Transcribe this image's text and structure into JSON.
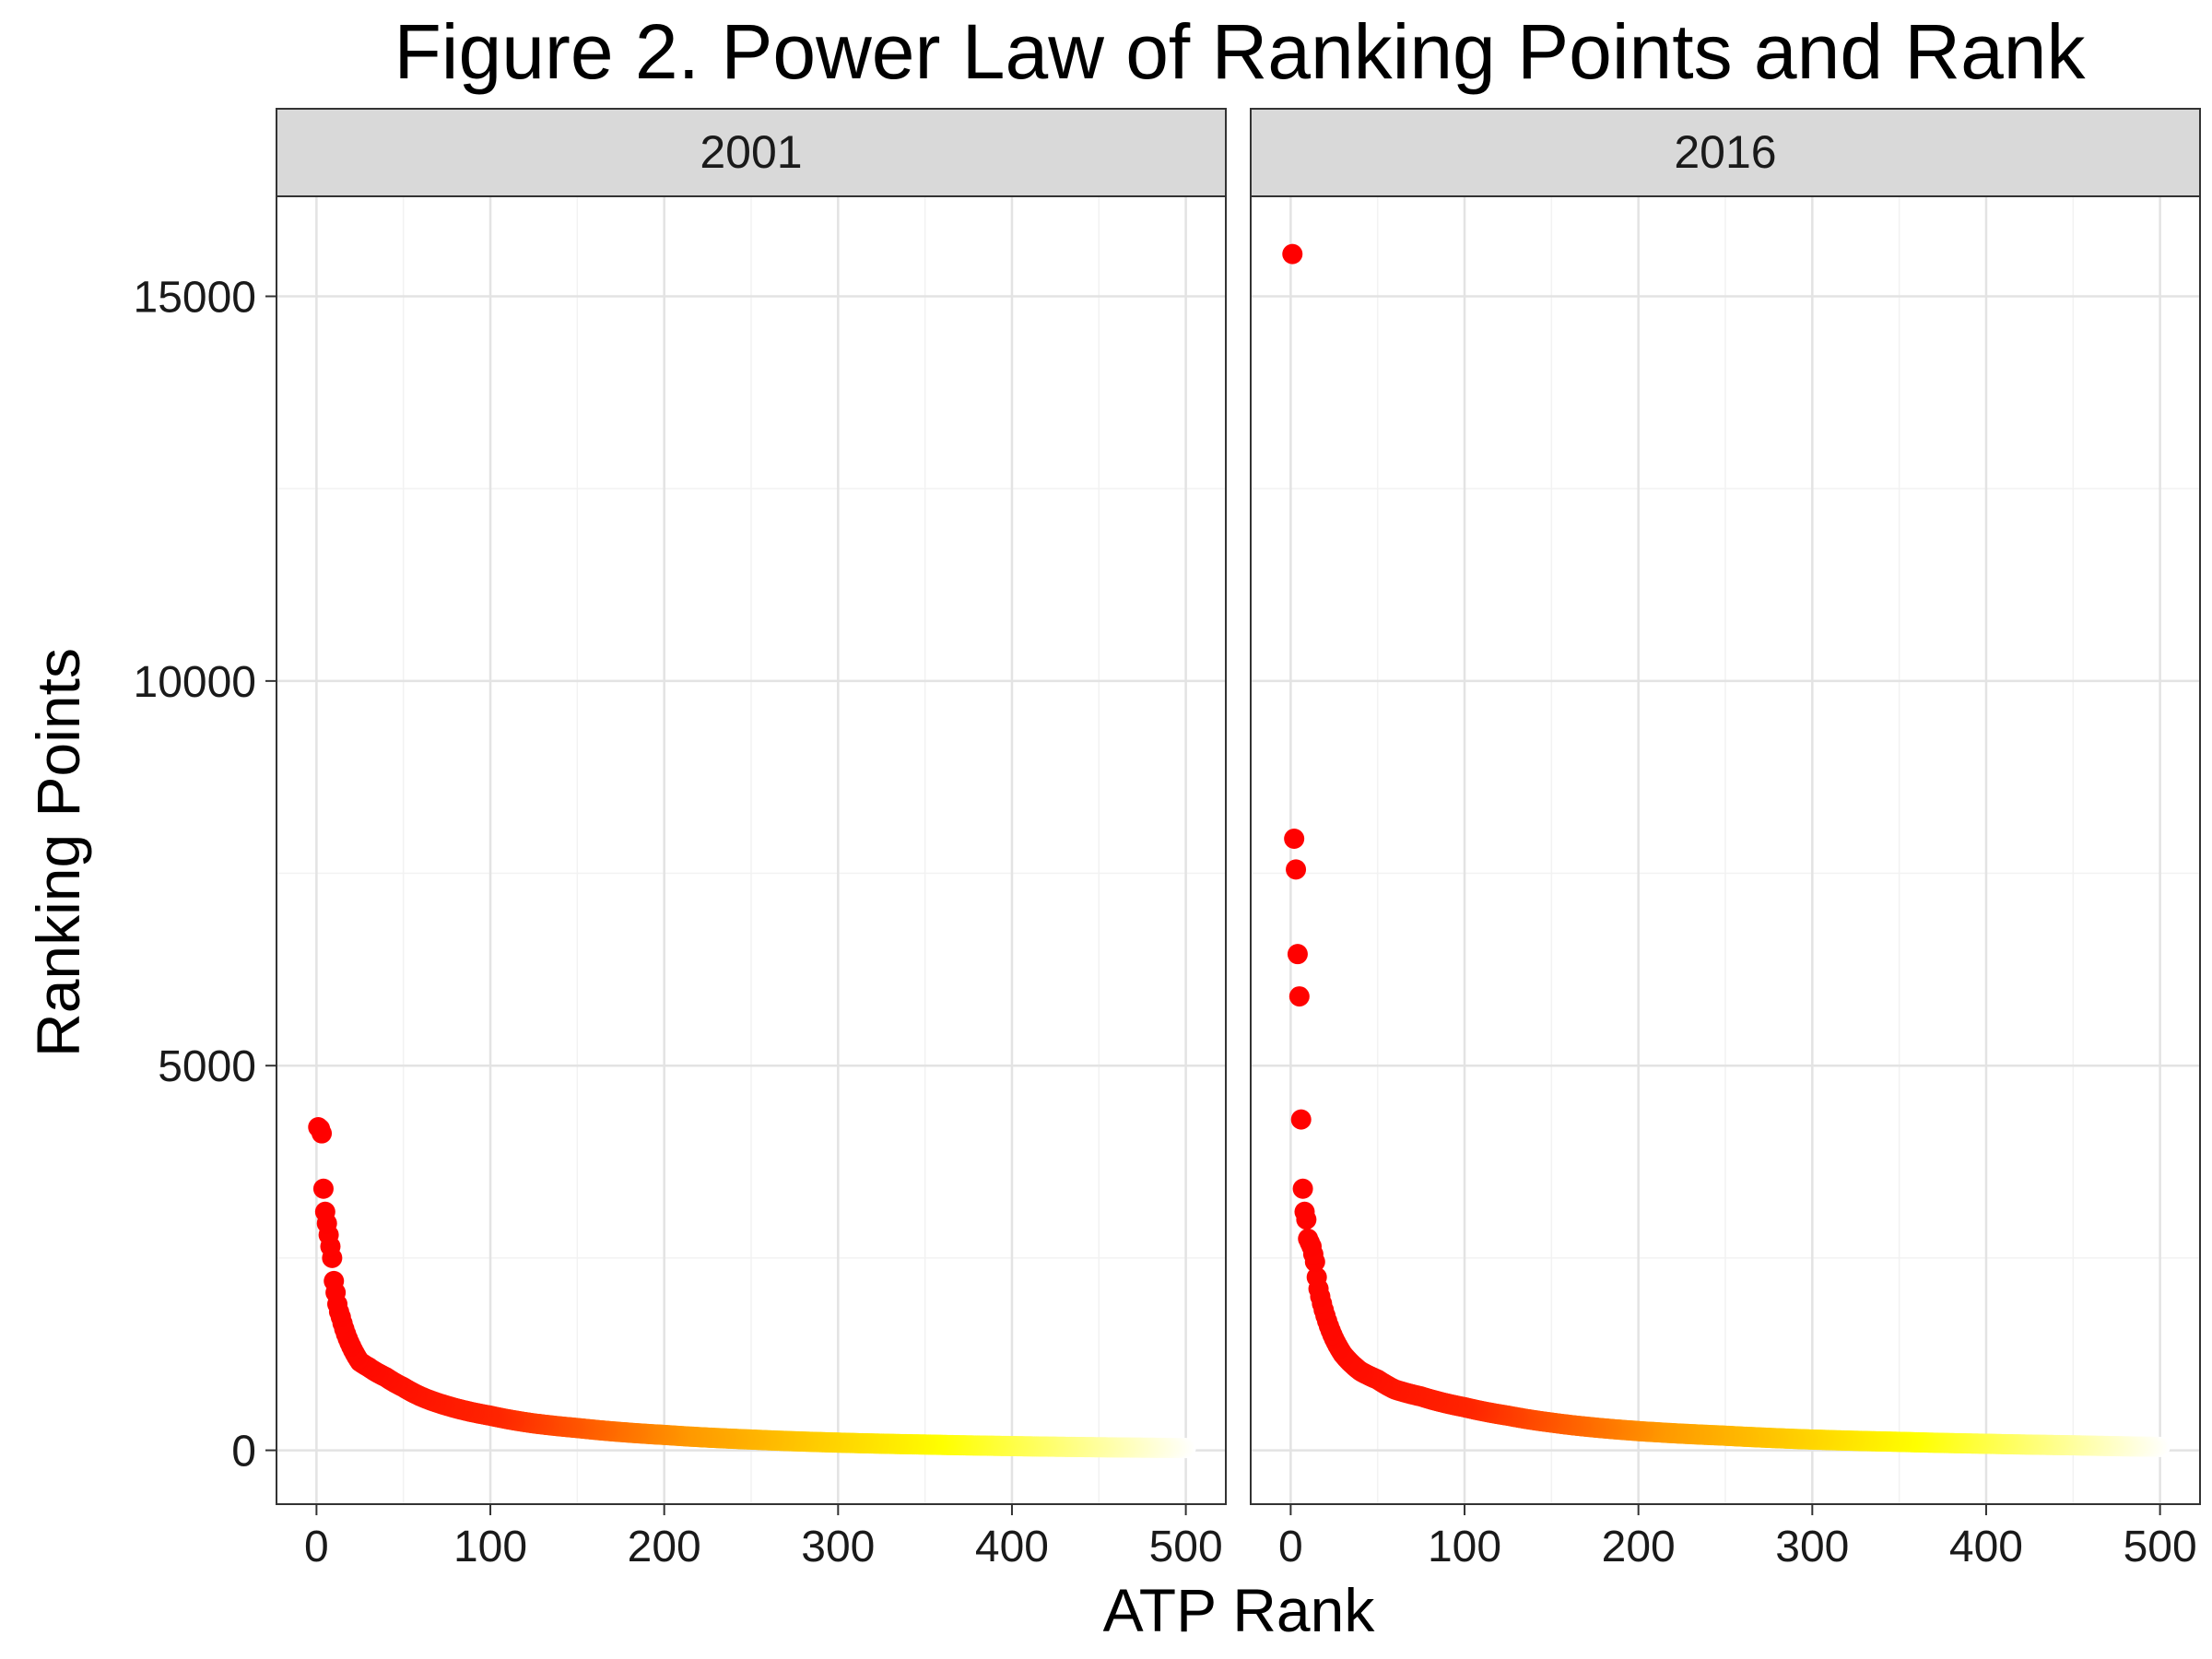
{
  "chart_data": {
    "type": "scatter",
    "title": "Figure 2. Power Law of Ranking Points and Rank",
    "xlabel": "ATP Rank",
    "ylabel": "Ranking Points",
    "xlim": [
      -23,
      523
    ],
    "ylim": [
      -700,
      16300
    ],
    "x_ticks": [
      0,
      100,
      200,
      300,
      400,
      500
    ],
    "y_ticks": [
      0,
      5000,
      10000,
      15000
    ],
    "grid": true,
    "color_gradient": [
      "#ff0000",
      "#ff9900",
      "#ffff00",
      "#ffffff"
    ],
    "facets": [
      {
        "label": "2001",
        "top_points": [
          {
            "rank": 1,
            "points": 4200
          },
          {
            "rank": 2,
            "points": 4180
          },
          {
            "rank": 3,
            "points": 4120
          },
          {
            "rank": 4,
            "points": 3400
          },
          {
            "rank": 5,
            "points": 3100
          },
          {
            "rank": 6,
            "points": 2950
          },
          {
            "rank": 7,
            "points": 2800
          },
          {
            "rank": 8,
            "points": 2650
          },
          {
            "rank": 9,
            "points": 2500
          },
          {
            "rank": 10,
            "points": 2200
          },
          {
            "rank": 11,
            "points": 2050
          },
          {
            "rank": 12,
            "points": 1900
          },
          {
            "rank": 13,
            "points": 1800
          }
        ],
        "tail_points": [
          {
            "rank": 15,
            "points": 1650
          },
          {
            "rank": 20,
            "points": 1350
          },
          {
            "rank": 25,
            "points": 1150
          },
          {
            "rank": 30,
            "points": 1080
          },
          {
            "rank": 40,
            "points": 950
          },
          {
            "rank": 50,
            "points": 820
          },
          {
            "rank": 60,
            "points": 700
          },
          {
            "rank": 75,
            "points": 580
          },
          {
            "rank": 100,
            "points": 450
          },
          {
            "rank": 125,
            "points": 350
          },
          {
            "rank": 150,
            "points": 290
          },
          {
            "rank": 200,
            "points": 200
          },
          {
            "rank": 250,
            "points": 140
          },
          {
            "rank": 300,
            "points": 100
          },
          {
            "rank": 350,
            "points": 75
          },
          {
            "rank": 400,
            "points": 55
          },
          {
            "rank": 450,
            "points": 40
          },
          {
            "rank": 500,
            "points": 30
          }
        ]
      },
      {
        "label": "2016",
        "top_points": [
          {
            "rank": 1,
            "points": 15550
          },
          {
            "rank": 2,
            "points": 7950
          },
          {
            "rank": 3,
            "points": 7550
          },
          {
            "rank": 4,
            "points": 6450
          },
          {
            "rank": 5,
            "points": 5900
          },
          {
            "rank": 6,
            "points": 4300
          },
          {
            "rank": 7,
            "points": 3400
          },
          {
            "rank": 8,
            "points": 3100
          },
          {
            "rank": 9,
            "points": 3000
          },
          {
            "rank": 10,
            "points": 2750
          },
          {
            "rank": 11,
            "points": 2700
          },
          {
            "rank": 12,
            "points": 2650
          },
          {
            "rank": 13,
            "points": 2550
          },
          {
            "rank": 14,
            "points": 2450
          },
          {
            "rank": 15,
            "points": 2250
          }
        ],
        "tail_points": [
          {
            "rank": 16,
            "points": 2100
          },
          {
            "rank": 20,
            "points": 1750
          },
          {
            "rank": 25,
            "points": 1450
          },
          {
            "rank": 30,
            "points": 1250
          },
          {
            "rank": 40,
            "points": 1030
          },
          {
            "rank": 50,
            "points": 920
          },
          {
            "rank": 60,
            "points": 790
          },
          {
            "rank": 75,
            "points": 700
          },
          {
            "rank": 100,
            "points": 560
          },
          {
            "rank": 125,
            "points": 450
          },
          {
            "rank": 150,
            "points": 360
          },
          {
            "rank": 200,
            "points": 250
          },
          {
            "rank": 250,
            "points": 190
          },
          {
            "rank": 300,
            "points": 140
          },
          {
            "rank": 350,
            "points": 110
          },
          {
            "rank": 400,
            "points": 85
          },
          {
            "rank": 450,
            "points": 65
          },
          {
            "rank": 500,
            "points": 45
          }
        ]
      }
    ]
  }
}
